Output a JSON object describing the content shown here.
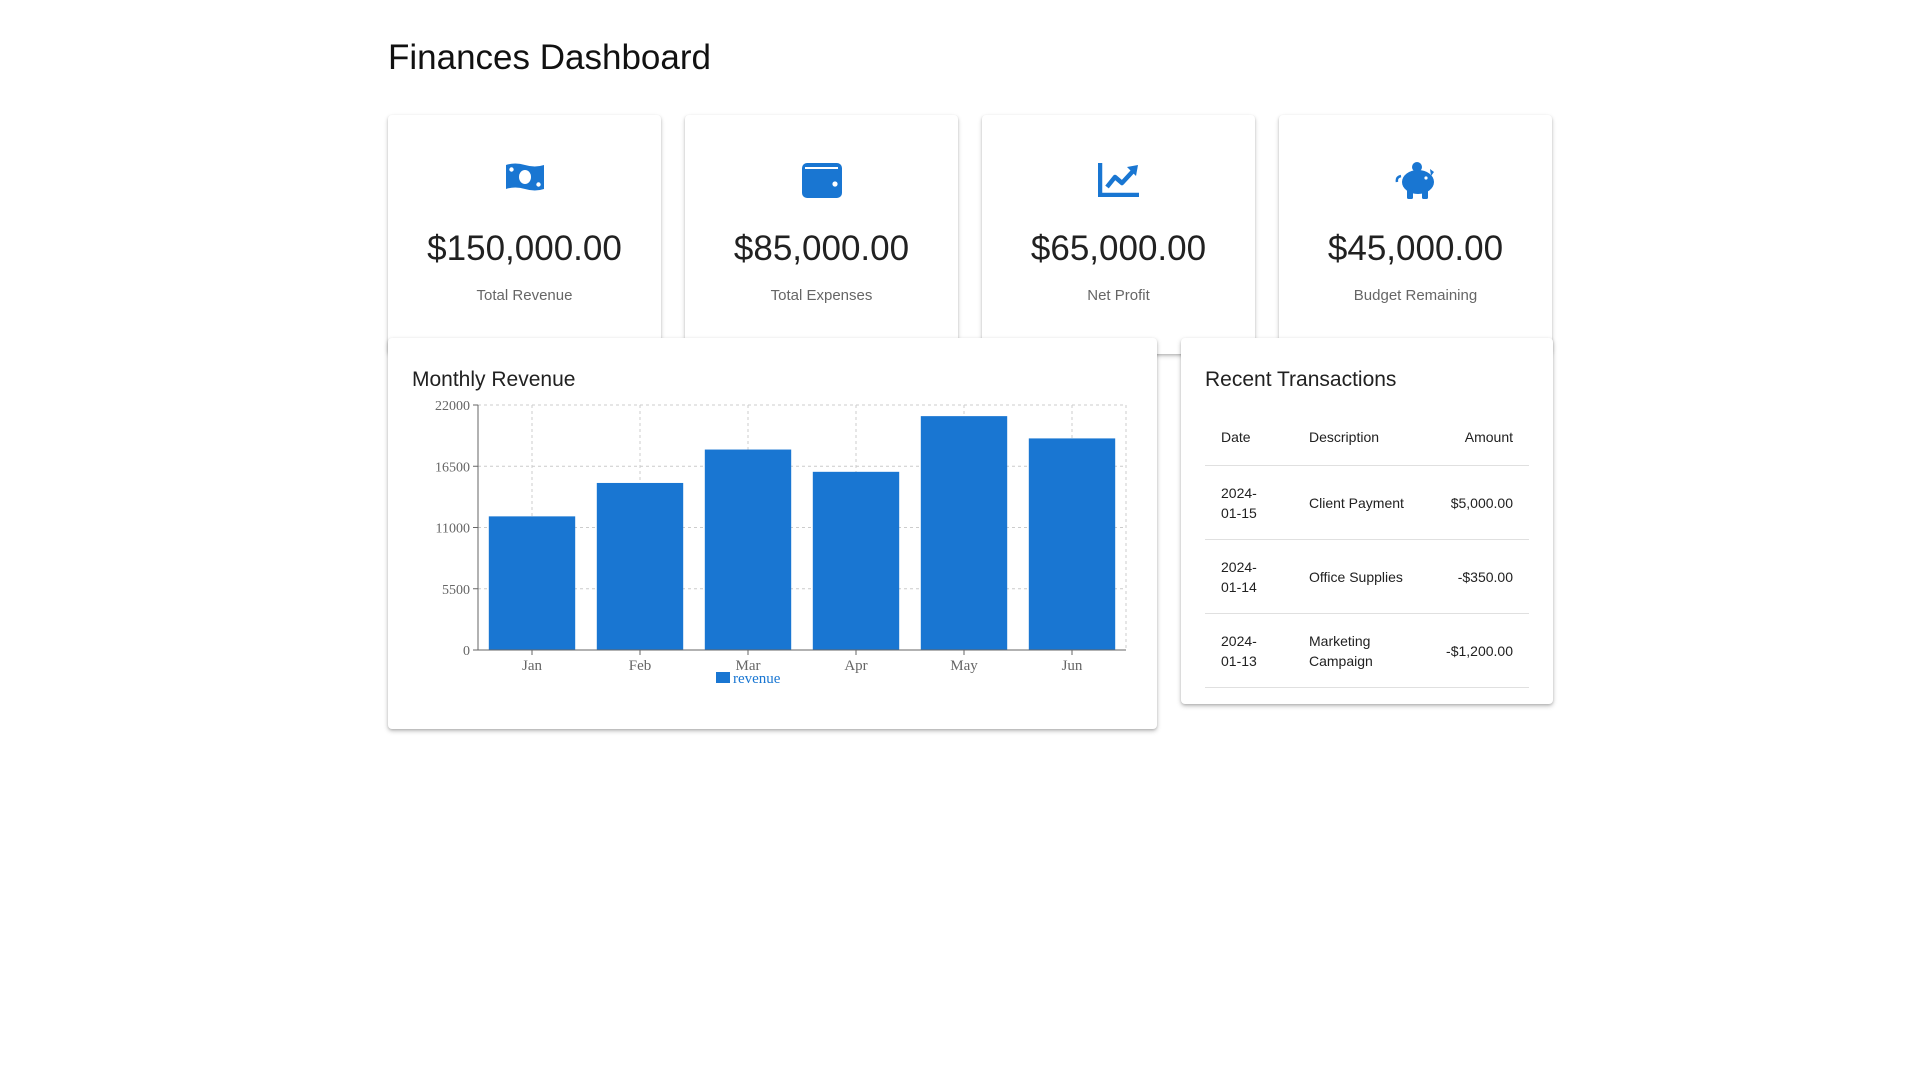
{
  "page": {
    "title": "Finances Dashboard"
  },
  "colors": {
    "accent": "#1976d2",
    "positive": "#2e7d32",
    "negative": "#d32f2f"
  },
  "stats": [
    {
      "icon": "money-bill-icon",
      "value": "$150,000.00",
      "label": "Total Revenue"
    },
    {
      "icon": "wallet-icon",
      "value": "$85,000.00",
      "label": "Total Expenses"
    },
    {
      "icon": "trending-up-icon",
      "value": "$65,000.00",
      "label": "Net Profit"
    },
    {
      "icon": "piggy-bank-icon",
      "value": "$45,000.00",
      "label": "Budget Remaining"
    }
  ],
  "chart_panel": {
    "title": "Monthly Revenue"
  },
  "chart_data": {
    "type": "bar",
    "title": "Monthly Revenue",
    "categories": [
      "Jan",
      "Feb",
      "Mar",
      "Apr",
      "May",
      "Jun"
    ],
    "series": [
      {
        "name": "revenue",
        "values": [
          12000,
          15000,
          18000,
          16000,
          21000,
          19000
        ],
        "color": "#1976d2"
      }
    ],
    "ylim": [
      0,
      22000
    ],
    "yticks": [
      0,
      5500,
      11000,
      16500,
      22000
    ],
    "grid": true,
    "legend": "bottom"
  },
  "transactions": {
    "title": "Recent Transactions",
    "headers": {
      "date": "Date",
      "description": "Description",
      "amount": "Amount"
    },
    "rows": [
      {
        "date": "2024-01-15",
        "description": "Client Payment",
        "amount": "$5,000.00",
        "type": "positive"
      },
      {
        "date": "2024-01-14",
        "description": "Office Supplies",
        "amount": "-$350.00",
        "type": "negative"
      },
      {
        "date": "2024-01-13",
        "description": "Marketing Campaign",
        "amount": "-$1,200.00",
        "type": "negative"
      }
    ]
  }
}
